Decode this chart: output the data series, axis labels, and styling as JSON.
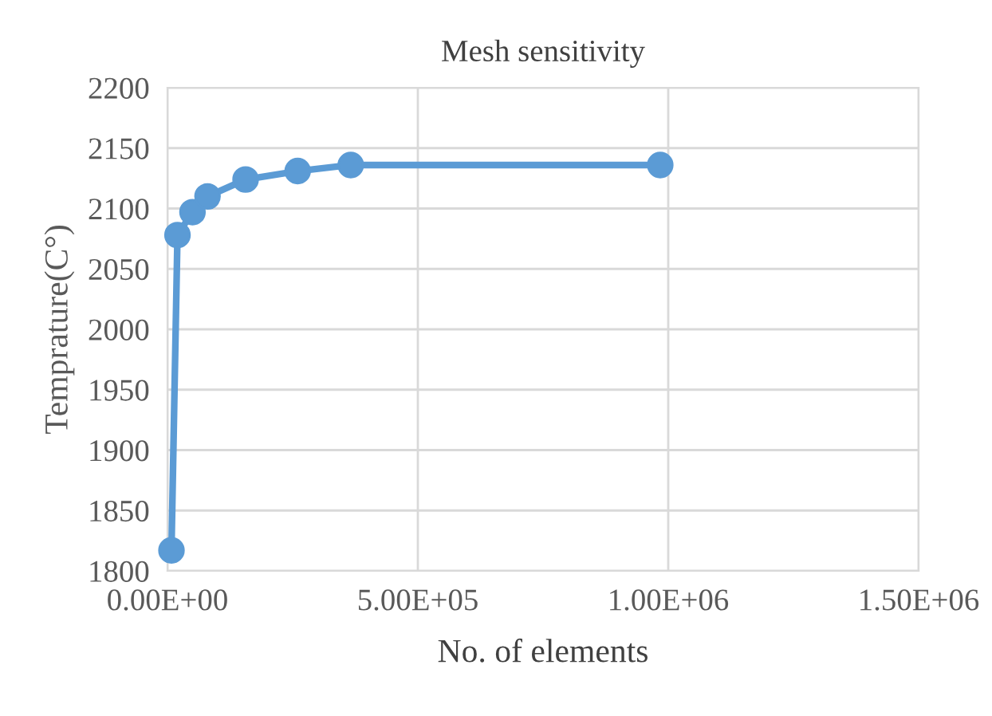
{
  "chart_data": {
    "type": "line",
    "title": "Mesh sensitivity",
    "xlabel": "No. of elements",
    "ylabel": "Temprature(C°)",
    "x": [
      8000,
      20000,
      50000,
      80000,
      156000,
      260000,
      366000,
      984000
    ],
    "series": [
      {
        "color": "#5b9bd5",
        "values": [
          1817,
          2078,
          2097,
          2110,
          2124,
          2131,
          2136,
          2136
        ]
      }
    ],
    "xlim": [
      0,
      1500000
    ],
    "xticks": [
      {
        "value": 0,
        "label": "0.00E+00"
      },
      {
        "value": 500000,
        "label": "5.00E+05"
      },
      {
        "value": 1000000,
        "label": "1.00E+06"
      },
      {
        "value": 1500000,
        "label": "1.50E+06"
      }
    ],
    "ylim": [
      1800,
      2200
    ],
    "yticks": [
      1800,
      1850,
      1900,
      1950,
      2000,
      2050,
      2100,
      2150,
      2200
    ],
    "grid": true,
    "marker": "circle",
    "line_style": "solid"
  }
}
